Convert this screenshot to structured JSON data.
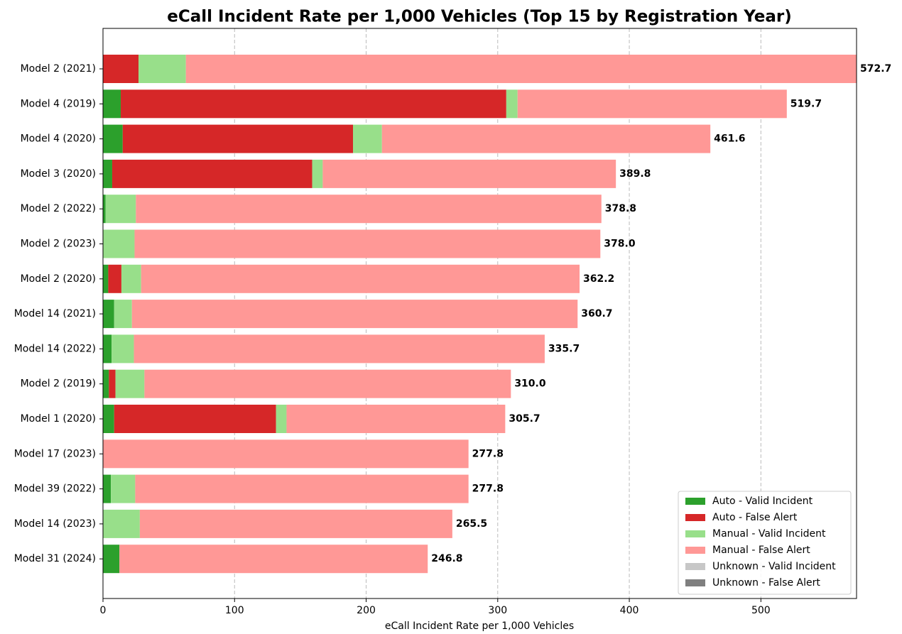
{
  "chart_data": {
    "type": "stacked-barh",
    "title": "eCall Incident Rate per 1,000 Vehicles (Top 15 by Registration Year)",
    "x_label": "eCall Incident Rate per 1,000 Vehicles",
    "categories": [
      "Model 2 (2021)",
      "Model 4 (2019)",
      "Model 4 (2020)",
      "Model 3 (2020)",
      "Model 2 (2022)",
      "Model 2 (2023)",
      "Model 2 (2020)",
      "Model 14 (2021)",
      "Model 14 (2022)",
      "Model 2 (2019)",
      "Model 1 (2020)",
      "Model 17 (2023)",
      "Model 39 (2022)",
      "Model 14 (2023)",
      "Model 31 (2024)"
    ],
    "series": [
      {
        "name": "Auto - Valid Incident",
        "color": "#2ca02c",
        "values": [
          0,
          13.5,
          15,
          7,
          2,
          0,
          4,
          8.5,
          6.5,
          4.5,
          8.5,
          0,
          6,
          0,
          12.5
        ]
      },
      {
        "name": "Auto - False Alert",
        "color": "#d62728",
        "values": [
          27,
          293,
          175,
          152,
          0,
          0,
          10,
          0,
          0,
          5,
          123,
          0,
          0,
          0,
          0
        ]
      },
      {
        "name": "Manual - Valid Incident",
        "color": "#98df8a",
        "values": [
          36,
          8.6,
          22,
          8,
          23,
          24,
          15,
          13.5,
          17,
          22,
          8,
          0,
          18.5,
          28,
          0
        ]
      },
      {
        "name": "Manual - False Alert",
        "color": "#ff9896",
        "values": [
          509.7,
          204.6,
          249.6,
          222.8,
          353.8,
          354,
          333.2,
          338.7,
          312.2,
          278.5,
          166.2,
          277.8,
          253.3,
          237.5,
          234.3
        ]
      },
      {
        "name": "Unknown - Valid Incident",
        "color": "#c7c7c7",
        "values": [
          0,
          0,
          0,
          0,
          0,
          0,
          0,
          0,
          0,
          0,
          0,
          0,
          0,
          0,
          0
        ]
      },
      {
        "name": "Unknown - False Alert",
        "color": "#7f7f7f",
        "values": [
          0,
          0,
          0,
          0,
          0,
          0,
          0,
          0,
          0,
          0,
          0,
          0,
          0,
          0,
          0
        ]
      }
    ],
    "totals": [
      572.7,
      519.7,
      461.6,
      389.8,
      378.8,
      378,
      362.2,
      360.7,
      335.7,
      310,
      305.7,
      277.8,
      277.8,
      265.5,
      246.8
    ],
    "total_labels": [
      "572.7",
      "519.7",
      "461.6",
      "389.8",
      "378.8",
      "378.0",
      "362.2",
      "360.7",
      "335.7",
      "310.0",
      "305.7",
      "277.8",
      "277.8",
      "265.5",
      "246.8"
    ],
    "xlim": [
      0,
      572.7
    ],
    "xticks": [
      0,
      100,
      200,
      300,
      400,
      500
    ],
    "grid": true,
    "legend": "lower right"
  }
}
